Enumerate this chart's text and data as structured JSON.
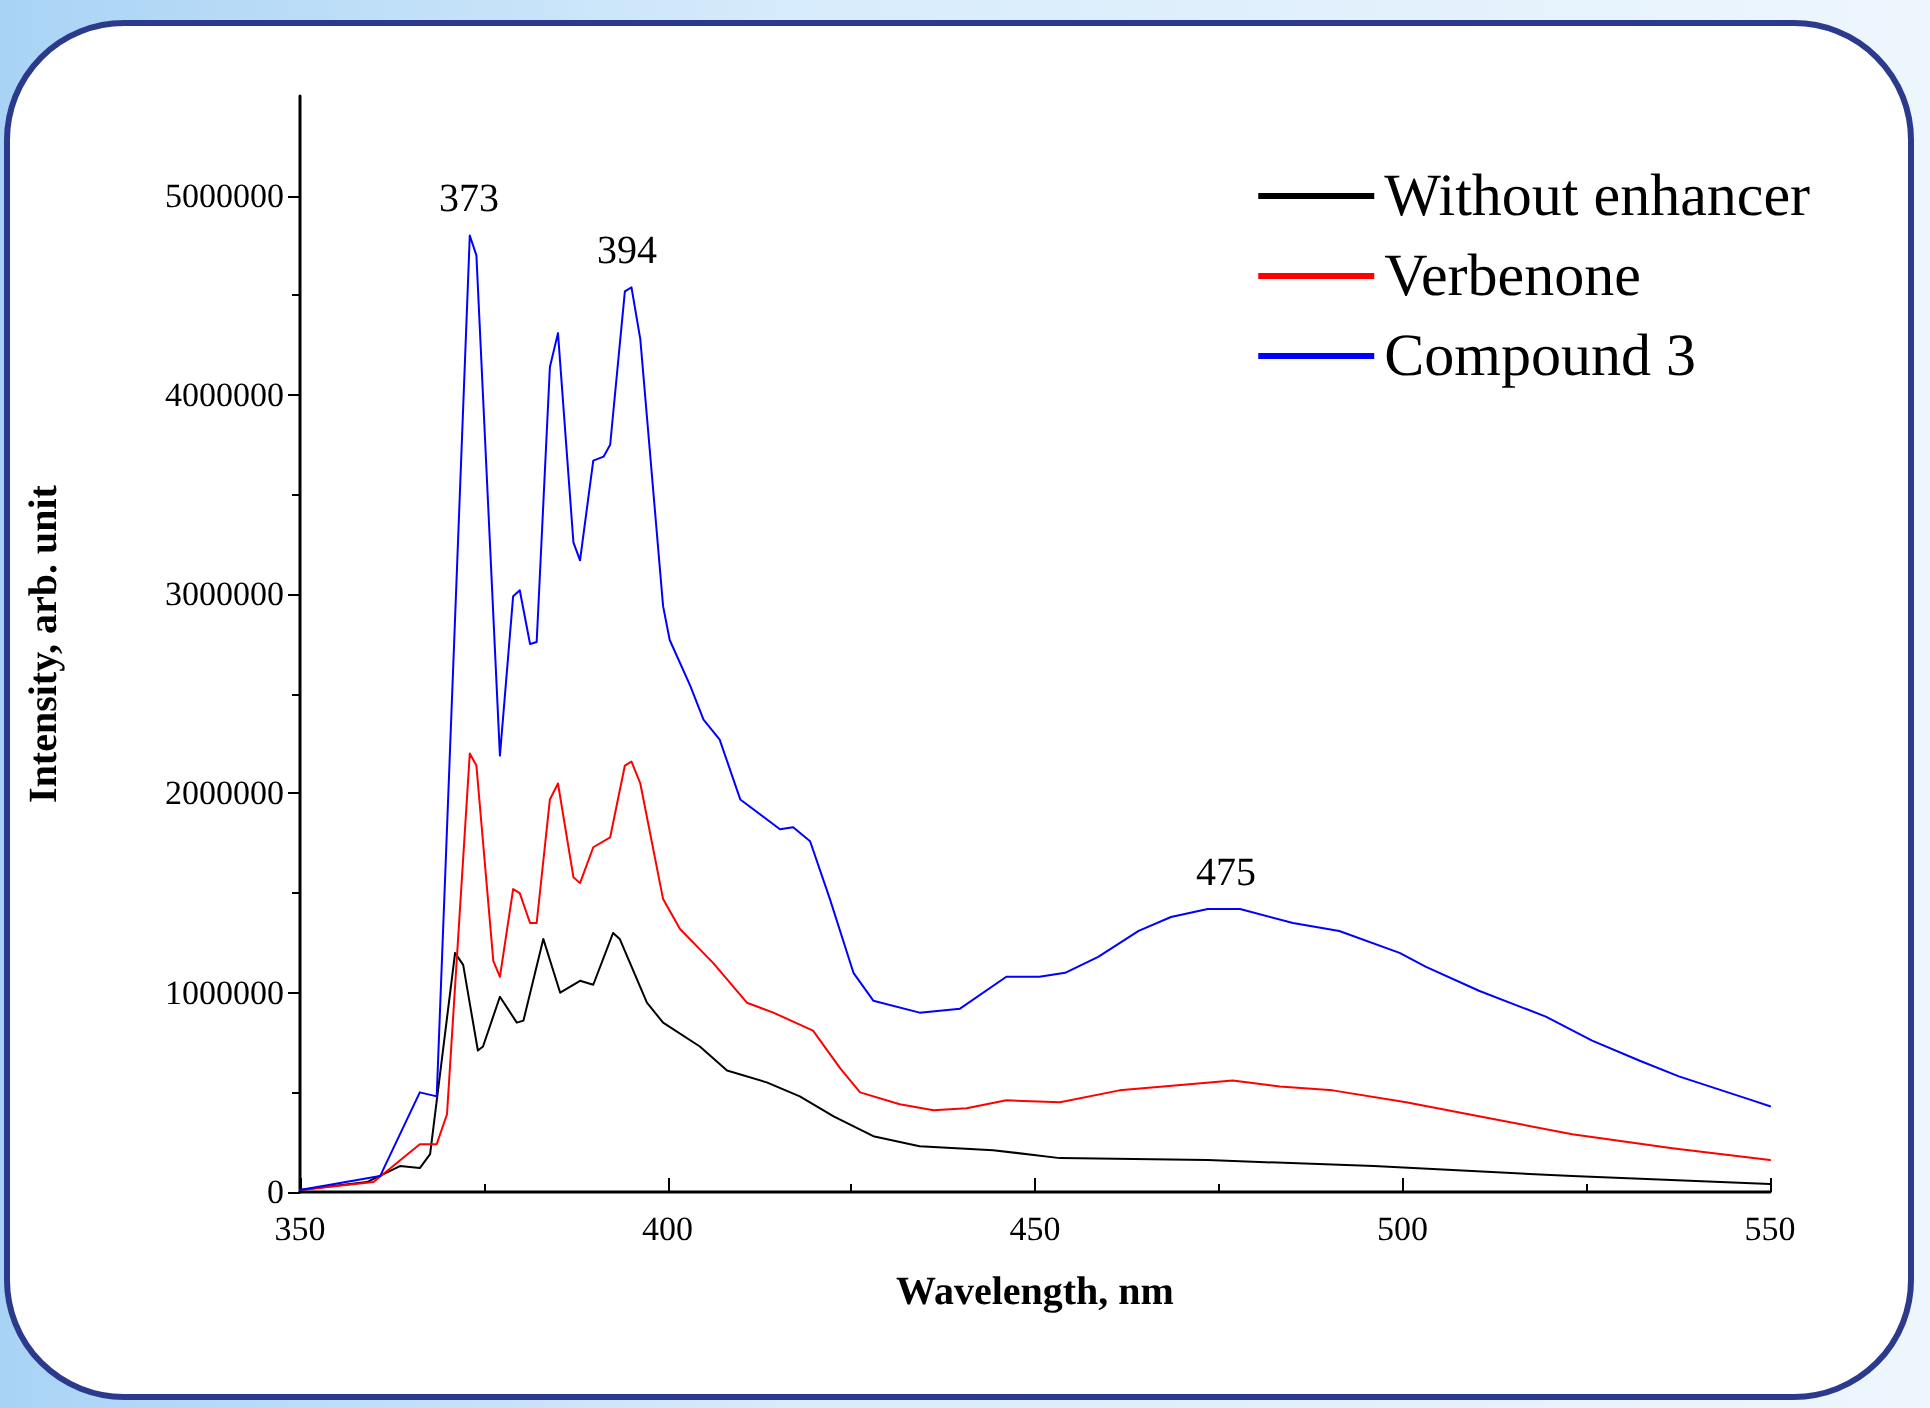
{
  "chart_data": {
    "type": "line",
    "xlabel": "Wavelength, nm",
    "ylabel": "Intensity, arb. unit",
    "xlim": [
      350,
      550
    ],
    "xticks": [
      350,
      400,
      450,
      500,
      550
    ],
    "ylim": [
      0,
      5500000
    ],
    "yticks": [
      0,
      1000000,
      2000000,
      3000000,
      4000000,
      5000000
    ],
    "grid": false,
    "legend": "top right",
    "marker": "none",
    "line_style": "solid",
    "annotations": [
      {
        "text": "373",
        "x": 373,
        "y": 4800000
      },
      {
        "text": "394",
        "x": 394.5,
        "y": 4540000
      },
      {
        "text": "475",
        "x": 476,
        "y": 1420000
      }
    ],
    "series": [
      {
        "name": "Without enhancer",
        "color": "#000000",
        "x": [
          350,
          359.1,
          363.6,
          366.3,
          367.7,
          371.1,
          372.2,
          374.2,
          374.9,
          377.2,
          379.5,
          380.4,
          383.1,
          385.4,
          388.1,
          389.9,
          392.6,
          393.5,
          397.2,
          399.4,
          404.4,
          408.1,
          413.5,
          418,
          422.6,
          428,
          434.3,
          444.3,
          453.4,
          473.5,
          496.1,
          523.1,
          550
        ],
        "values": [
          10000,
          50000,
          130000,
          120000,
          190000,
          1200000,
          1140000,
          710000,
          730000,
          980000,
          850000,
          860000,
          1270000,
          1000000,
          1060000,
          1040000,
          1300000,
          1270000,
          950000,
          850000,
          730000,
          610000,
          550000,
          480000,
          380000,
          280000,
          230000,
          210000,
          170000,
          160000,
          130000,
          80000,
          40000
        ]
      },
      {
        "name": "Verbenone",
        "color": "#ff0000",
        "x": [
          350,
          360,
          366.3,
          368.6,
          370,
          373.1,
          374,
          376.3,
          377.2,
          379,
          379.9,
          381.3,
          382.2,
          384,
          385.1,
          387.2,
          388.1,
          389.9,
          392.2,
          394.2,
          395.1,
          396.3,
          399.4,
          401.7,
          406.2,
          410.8,
          414.4,
          419.8,
          423.5,
          426.2,
          431.6,
          436.2,
          440.7,
          446.1,
          453.4,
          461.5,
          470.6,
          476.9,
          483.3,
          490.5,
          500.5,
          510.4,
          523.1,
          536.7,
          550
        ],
        "values": [
          10000,
          50000,
          240000,
          240000,
          390000,
          2200000,
          2140000,
          1160000,
          1080000,
          1520000,
          1500000,
          1350000,
          1350000,
          1970000,
          2050000,
          1580000,
          1550000,
          1730000,
          1780000,
          2140000,
          2160000,
          2050000,
          1470000,
          1320000,
          1150000,
          950000,
          900000,
          810000,
          620000,
          500000,
          440000,
          410000,
          420000,
          460000,
          450000,
          510000,
          540000,
          560000,
          530000,
          510000,
          450000,
          380000,
          290000,
          220000,
          160000
        ]
      },
      {
        "name": "Compound 3",
        "color": "#0000ff",
        "x": [
          350,
          360.9,
          366.3,
          368.6,
          373.1,
          374,
          377.2,
          379,
          379.9,
          381.3,
          382.2,
          384,
          385.1,
          387.2,
          388.1,
          389.9,
          391.3,
          392.2,
          394.2,
          395.1,
          396.3,
          399.4,
          400.3,
          403.1,
          404.9,
          407.1,
          409.9,
          415.3,
          417.1,
          419.4,
          422.1,
          425.3,
          428,
          434.3,
          439.8,
          446.1,
          450.6,
          454.1,
          458.6,
          464.1,
          468.5,
          473.5,
          477.9,
          485.1,
          491.4,
          499.6,
          503.2,
          510.4,
          519.5,
          525.8,
          532.2,
          537.6,
          547.6,
          550
        ],
        "values": [
          10000,
          80000,
          500000,
          480000,
          4800000,
          4700000,
          2190000,
          2990000,
          3020000,
          2750000,
          2760000,
          4140000,
          4310000,
          3260000,
          3170000,
          3670000,
          3690000,
          3750000,
          4520000,
          4540000,
          4280000,
          2940000,
          2770000,
          2540000,
          2370000,
          2270000,
          1970000,
          1820000,
          1830000,
          1760000,
          1470000,
          1100000,
          960000,
          900000,
          920000,
          1080000,
          1080000,
          1100000,
          1180000,
          1310000,
          1380000,
          1420000,
          1420000,
          1350000,
          1310000,
          1200000,
          1130000,
          1010000,
          880000,
          760000,
          660000,
          580000,
          460000,
          430000
        ]
      }
    ]
  }
}
